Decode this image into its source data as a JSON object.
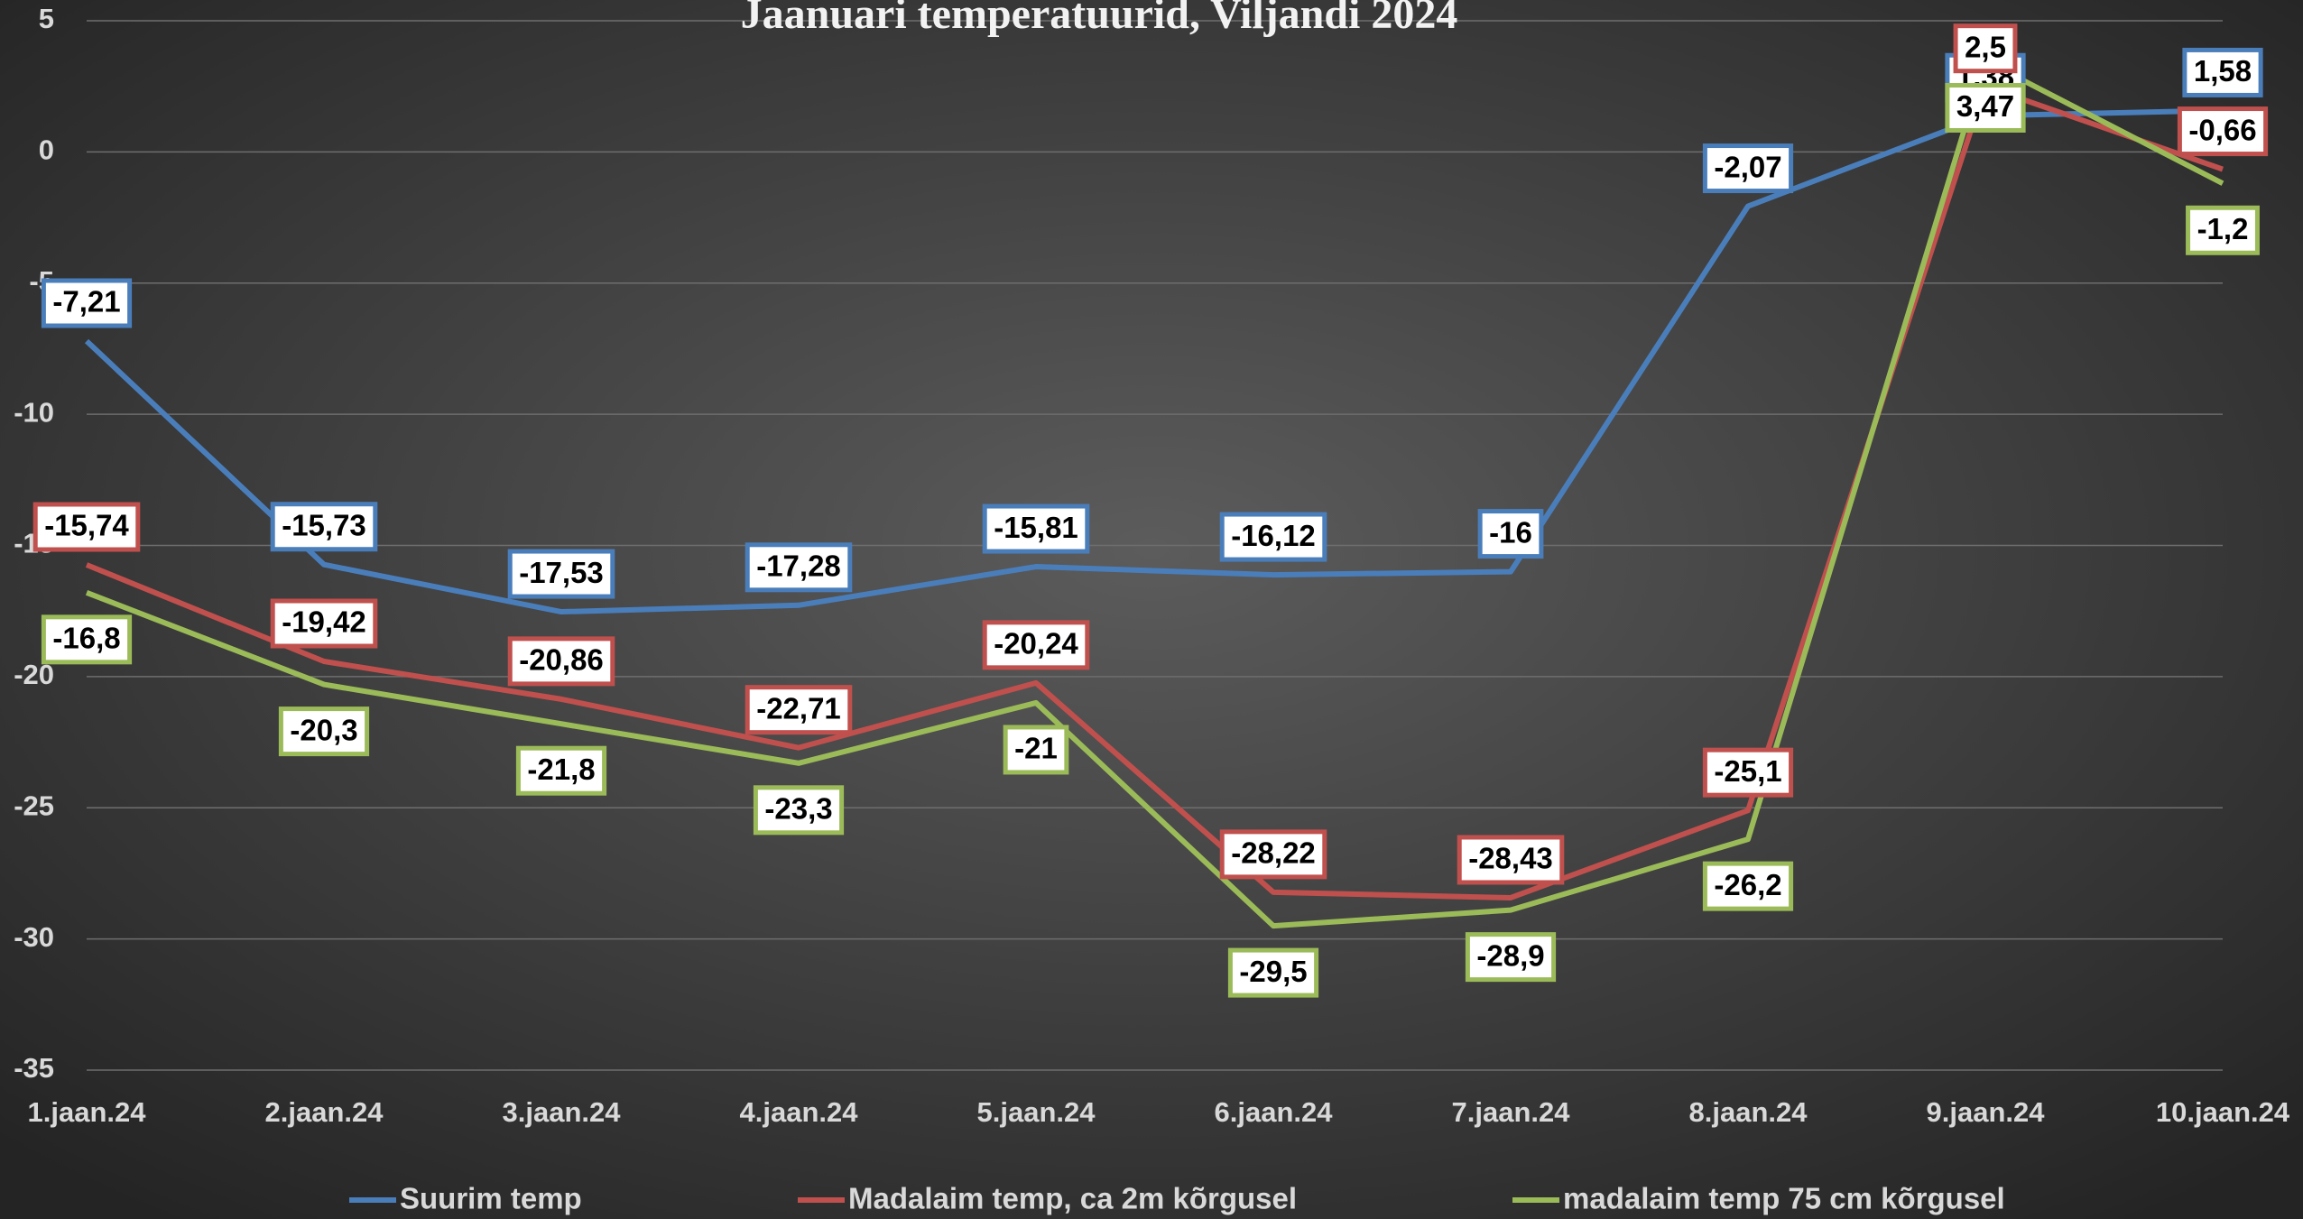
{
  "chart_data": {
    "type": "line",
    "title": "Jaanuari temperatuurid, Viljandi 2024",
    "categories": [
      "1.jaan.24",
      "2.jaan.24",
      "3.jaan.24",
      "4.jaan.24",
      "5.jaan.24",
      "6.jaan.24",
      "7.jaan.24",
      "8.jaan.24",
      "9.jaan.24",
      "10.jaan.24"
    ],
    "series": [
      {
        "name": "Suurim temp",
        "color": "#4a7ebb",
        "values": [
          -7.21,
          -15.73,
          -17.53,
          -17.28,
          -15.81,
          -16.12,
          -16,
          -2.07,
          1.38,
          1.58
        ],
        "value_labels": [
          "-7,21",
          "-15,73",
          "-17,53",
          "-17,28",
          "-15,81",
          "-16,12",
          "-16",
          "-2,07",
          "1,38",
          "1,58"
        ]
      },
      {
        "name": "Madalaim temp, ca 2m kõrgusel",
        "color": "#c0504d",
        "values": [
          -15.74,
          -19.42,
          -20.86,
          -22.71,
          -20.24,
          -28.22,
          -28.43,
          -25.1,
          2.5,
          -0.66
        ],
        "value_labels": [
          "-15,74",
          "-19,42",
          "-20,86",
          "-22,71",
          "-20,24",
          "-28,22",
          "-28,43",
          "-25,1",
          "2,5",
          "-0,66"
        ]
      },
      {
        "name": "madalaim temp 75 cm kõrgusel",
        "color": "#9bbb59",
        "values": [
          -16.8,
          -20.3,
          -21.8,
          -23.3,
          -21,
          -29.5,
          -28.9,
          -26.2,
          3.47,
          -1.2
        ],
        "value_labels": [
          "-16,8",
          "-20,3",
          "-21,8",
          "-23,3",
          "-21",
          "-29,5",
          "-28,9",
          "-26,2",
          "3,47",
          "-1,2"
        ]
      }
    ],
    "ylim": [
      -35,
      5
    ],
    "yticks": [
      -35,
      -30,
      -25,
      -20,
      -15,
      -10,
      -5,
      0,
      5
    ],
    "grid": true
  }
}
